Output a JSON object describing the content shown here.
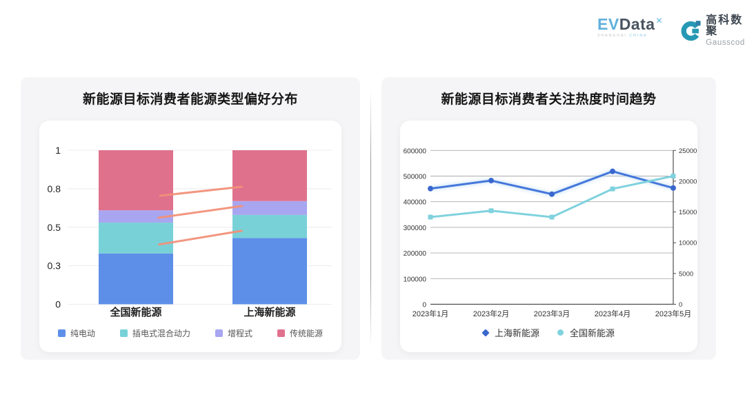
{
  "brand": {
    "evdata": {
      "ev": "EV",
      "data": "Data",
      "mark": "✕",
      "sub_left": "SHANGHAI",
      "sub_right": "CHINA"
    },
    "gausscode": {
      "name_cn": "高科数聚",
      "name_en": "Gausscode"
    }
  },
  "colors": {
    "card_bg": "#F5F5F7",
    "grid_light": "#ECECEE",
    "grid_gray": "#ABABAB",
    "axis_dark": "#4D4D4D",
    "connector": "#F2917A",
    "glow": "#C2DFF4"
  },
  "chart_data": [
    {
      "type": "bar",
      "stacked": true,
      "title": "新能源目标消费者能源类型偏好分布",
      "categories": [
        "全国新能源",
        "上海新能源"
      ],
      "series": [
        {
          "name": "纯电动",
          "color": "#5E8FE8",
          "values": [
            0.33,
            0.43
          ]
        },
        {
          "name": "插电式混合动力",
          "color": "#79D1D8",
          "values": [
            0.2,
            0.15
          ]
        },
        {
          "name": "增程式",
          "color": "#A8A6F0",
          "values": [
            0.08,
            0.09
          ]
        },
        {
          "name": "传统能源",
          "color": "#E0718C",
          "values": [
            0.39,
            0.33
          ]
        }
      ],
      "ylim": [
        0,
        1
      ],
      "y_ticks": {
        "values": [
          0,
          0.25,
          0.5,
          0.75,
          1
        ],
        "labels": [
          "0",
          "0.3",
          "0.5",
          "0.8",
          "1"
        ]
      },
      "grid": true,
      "legend_position": "bottom",
      "connector_lines": [
        {
          "x1": 0.351,
          "y1": 0.705,
          "x2": 0.659,
          "y2": 0.763
        },
        {
          "x1": 0.344,
          "y1": 0.562,
          "x2": 0.661,
          "y2": 0.638
        },
        {
          "x1": 0.346,
          "y1": 0.388,
          "x2": 0.659,
          "y2": 0.477
        }
      ]
    },
    {
      "type": "line",
      "title": "新能源目标消费者关注热度时间趋势",
      "x": [
        "2023年1月",
        "2023年2月",
        "2023年3月",
        "2023年4月",
        "2023年5月"
      ],
      "series": [
        {
          "name": "上海新能源",
          "axis": "right",
          "color": "#4577DB",
          "point_color": "#3A67CE",
          "marker": "diamond",
          "values": [
            18800,
            20100,
            17900,
            21600,
            18900
          ]
        },
        {
          "name": "全国新能源",
          "axis": "left",
          "color": "#7FD2DE",
          "point_color": "#7FD2DE",
          "marker": "square",
          "values": [
            340000,
            365000,
            340000,
            450000,
            500000
          ]
        }
      ],
      "left_axis": {
        "ticks": [
          0,
          100000,
          200000,
          300000,
          400000,
          500000,
          600000
        ],
        "max": 600000
      },
      "right_axis": {
        "ticks": [
          0,
          5000,
          10000,
          15000,
          20000,
          25000
        ],
        "max": 25000
      },
      "grid": true,
      "legend_position": "bottom"
    }
  ]
}
